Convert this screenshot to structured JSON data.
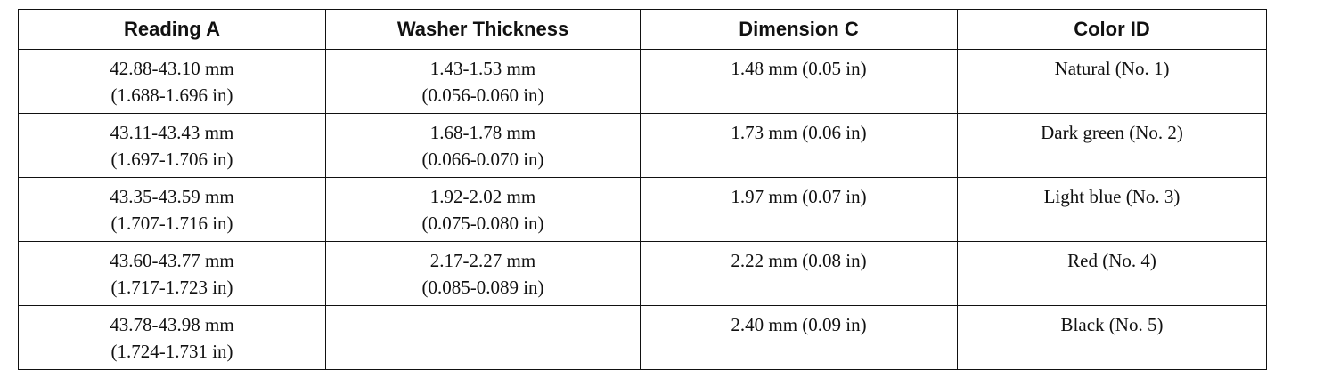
{
  "table": {
    "columns": [
      "Reading A",
      "Washer Thickness",
      "Dimension C",
      "Color ID"
    ],
    "rows": [
      [
        [
          "42.88-43.10 mm",
          "(1.688-1.696 in)"
        ],
        [
          "1.43-1.53 mm",
          "(0.056-0.060 in)"
        ],
        [
          "1.48 mm (0.05 in)"
        ],
        [
          "Natural (No. 1)"
        ]
      ],
      [
        [
          "43.11-43.43 mm",
          "(1.697-1.706 in)"
        ],
        [
          "1.68-1.78 mm",
          "(0.066-0.070 in)"
        ],
        [
          "1.73 mm (0.06 in)"
        ],
        [
          "Dark green (No. 2)"
        ]
      ],
      [
        [
          "43.35-43.59 mm",
          "(1.707-1.716 in)"
        ],
        [
          "1.92-2.02 mm",
          "(0.075-0.080 in)"
        ],
        [
          "1.97 mm (0.07 in)"
        ],
        [
          "Light blue (No. 3)"
        ]
      ],
      [
        [
          "43.60-43.77 mm",
          "(1.717-1.723 in)"
        ],
        [
          "2.17-2.27 mm",
          "(0.085-0.089 in)"
        ],
        [
          "2.22 mm (0.08 in)"
        ],
        [
          "Red (No. 4)"
        ]
      ],
      [
        [
          "43.78-43.98 mm",
          "(1.724-1.731 in)"
        ],
        null,
        [
          "2.40 mm (0.09 in)"
        ],
        [
          "Black (No. 5)"
        ]
      ]
    ]
  }
}
